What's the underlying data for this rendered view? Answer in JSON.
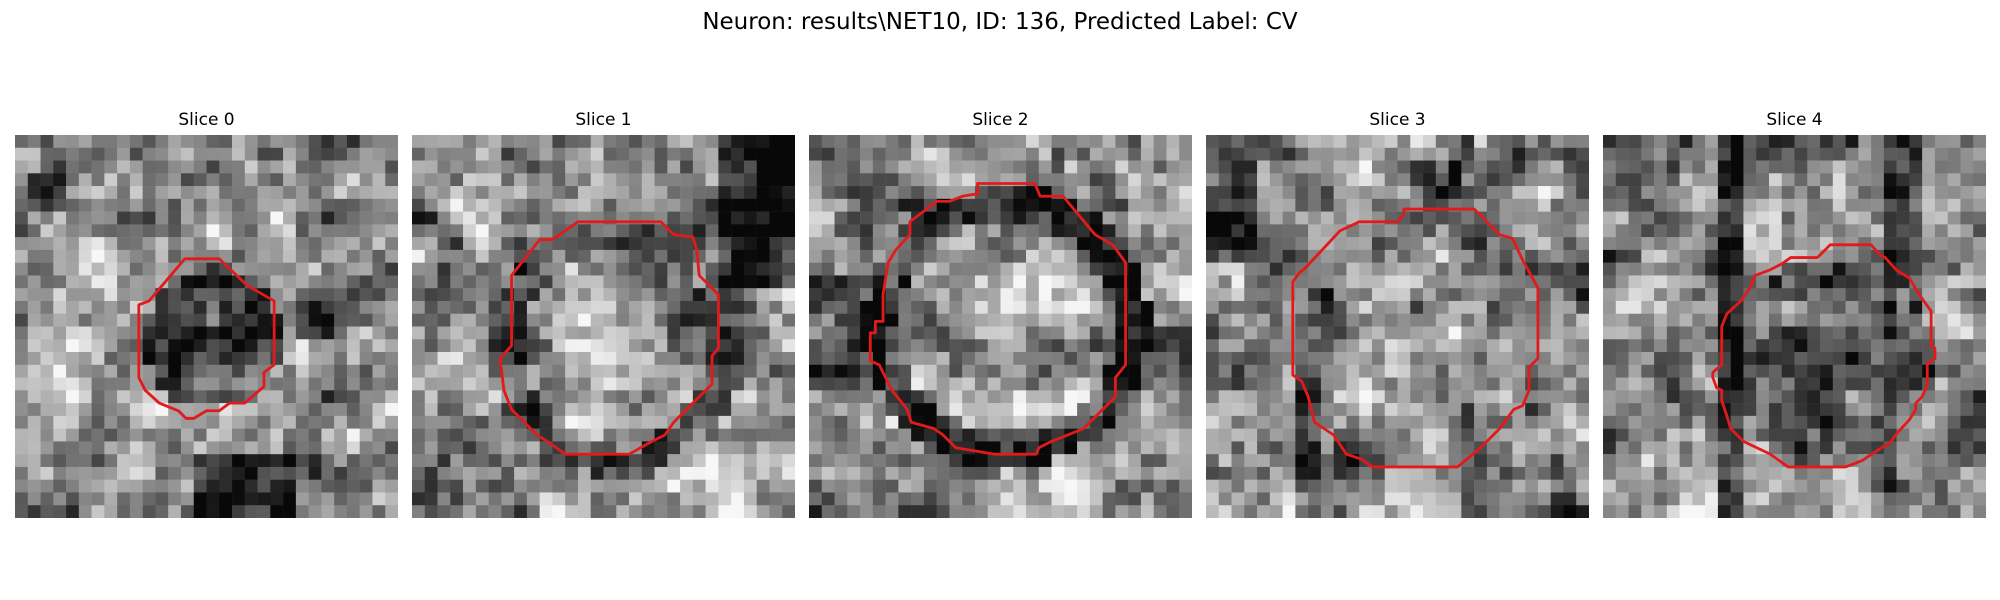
{
  "figure": {
    "title": "Neuron: results\\NET10, ID: 136, Predicted Label: CV"
  },
  "panels": [
    {
      "title": "Slice 0",
      "seed": 11,
      "blob": "dark-center"
    },
    {
      "title": "Slice 1",
      "seed": 23,
      "blob": "ring-faint"
    },
    {
      "title": "Slice 2",
      "seed": 37,
      "blob": "ring-dark"
    },
    {
      "title": "Slice 3",
      "seed": 41,
      "blob": "light-center"
    },
    {
      "title": "Slice 4",
      "seed": 53,
      "blob": "dark-vertical"
    }
  ],
  "colors": {
    "contour": "#e31a1c",
    "background": "#ffffff"
  }
}
